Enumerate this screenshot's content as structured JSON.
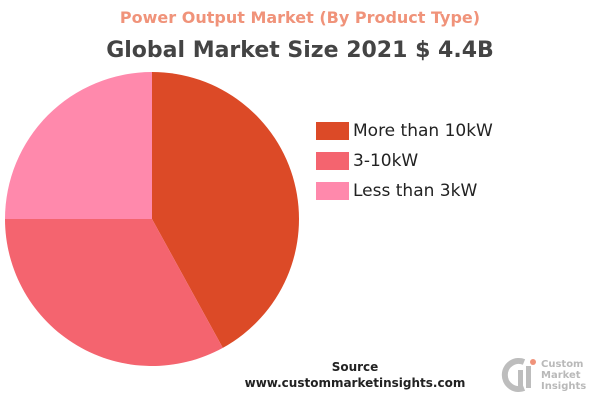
{
  "header": {
    "subtitle": "Power Output Market (By Product Type)",
    "title": "Global Market Size 2021 $ 4.4B"
  },
  "chart_data": {
    "type": "pie",
    "categories": [
      "More than 10kW",
      "3-10kW",
      "Less than 3kW"
    ],
    "values": [
      42,
      33,
      25
    ],
    "colors": [
      "#dc4a27",
      "#f4646f",
      "#ff89ac"
    ],
    "legend_position": "right"
  },
  "footer": {
    "source_label": "Source",
    "source_url": "www.custommarketinsights.com"
  },
  "logo": {
    "mark": "CMI",
    "lines": [
      "Custom",
      "Market",
      "Insights"
    ]
  }
}
